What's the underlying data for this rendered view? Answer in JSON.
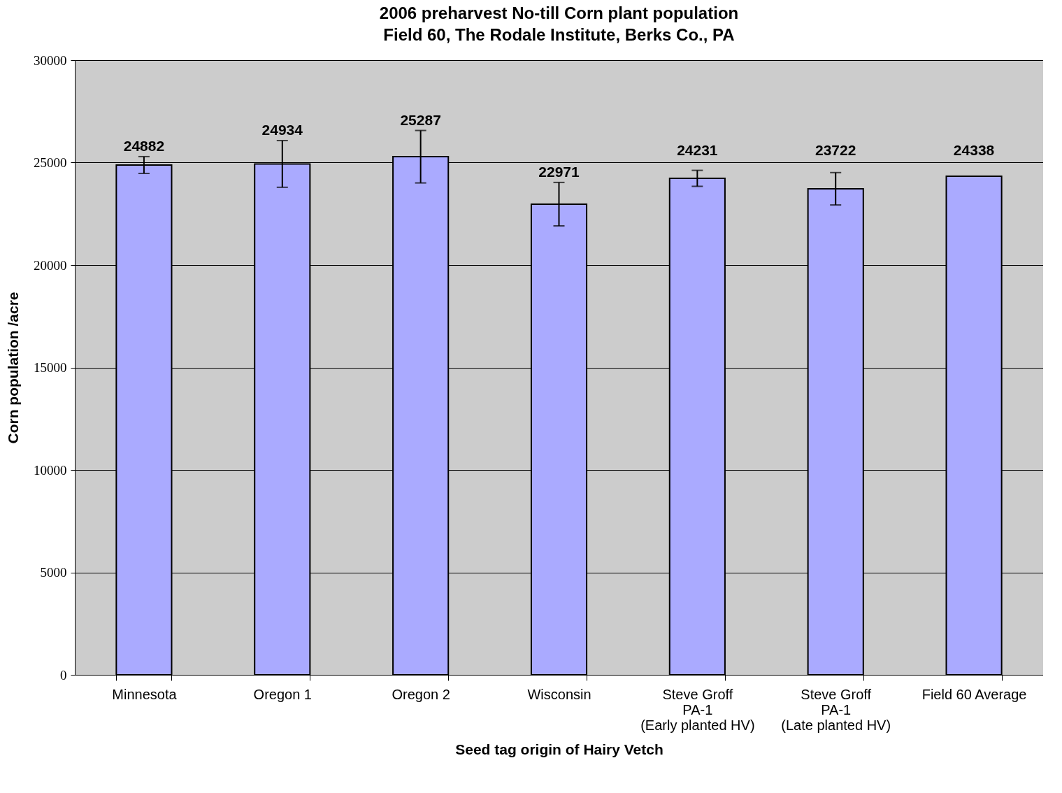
{
  "chart_data": {
    "type": "bar",
    "title": [
      "2006 preharvest No-till Corn plant population",
      "Field 60, The Rodale Institute, Berks Co., PA"
    ],
    "xlabel": "Seed tag origin of Hairy Vetch",
    "ylabel": "Corn population /acre",
    "categories": [
      "Minnesota",
      "Oregon 1",
      "Oregon 2",
      "Wisconsin",
      "Steve Groff\nPA-1\n(Early planted HV)",
      "Steve Groff\nPA-1\n(Late planted HV)",
      "Field 60 Average"
    ],
    "values": [
      24882,
      24934,
      25287,
      22971,
      24231,
      23722,
      24338
    ],
    "errors": [
      410,
      1140,
      1280,
      1060,
      390,
      790,
      null
    ],
    "color": "#aaaaff",
    "ylim": [
      0,
      30000
    ],
    "yticks": [
      0,
      5000,
      10000,
      15000,
      20000,
      25000,
      30000
    ],
    "grid": "y",
    "data_labels": true
  }
}
